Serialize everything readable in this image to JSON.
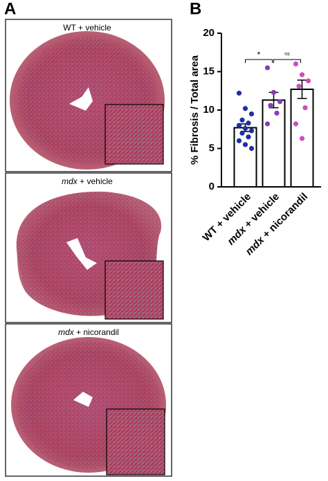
{
  "panels": {
    "a": "A",
    "b": "B"
  },
  "images": [
    {
      "caption": "WT + vehicle"
    },
    {
      "caption_italic": "mdx",
      "caption": " + vehicle"
    },
    {
      "caption_italic": "mdx",
      "caption": " + nicorandil"
    }
  ],
  "chart_data": {
    "type": "bar",
    "y_label": "% Fibrosis / Total area",
    "categories": [
      {
        "text": "WT + vehicle"
      },
      {
        "italic": "mdx",
        "text": " + vehicle"
      },
      {
        "italic": "mdx",
        "text": " + nicorandil"
      }
    ],
    "values": [
      7.7,
      11.3,
      12.7
    ],
    "errors": [
      0.5,
      1.0,
      1.2
    ],
    "colors": [
      "#1f2fa3",
      "#8a3ab9",
      "#c94fc0"
    ],
    "points": [
      [
        12.2,
        10.2,
        9.5,
        8.7,
        8.3,
        8.0,
        7.6,
        7.3,
        7.0,
        6.5,
        6.0,
        5.5,
        5.0
      ],
      [
        15.5,
        12.3,
        11.1,
        10.6,
        9.6,
        8.2
      ],
      [
        16.0,
        14.6,
        13.8,
        13.1,
        10.3,
        8.2,
        6.3
      ]
    ],
    "annotations": [
      "*",
      "ns"
    ],
    "ylim": [
      0,
      20
    ],
    "yticks": [
      0,
      5,
      10,
      15,
      20
    ]
  }
}
